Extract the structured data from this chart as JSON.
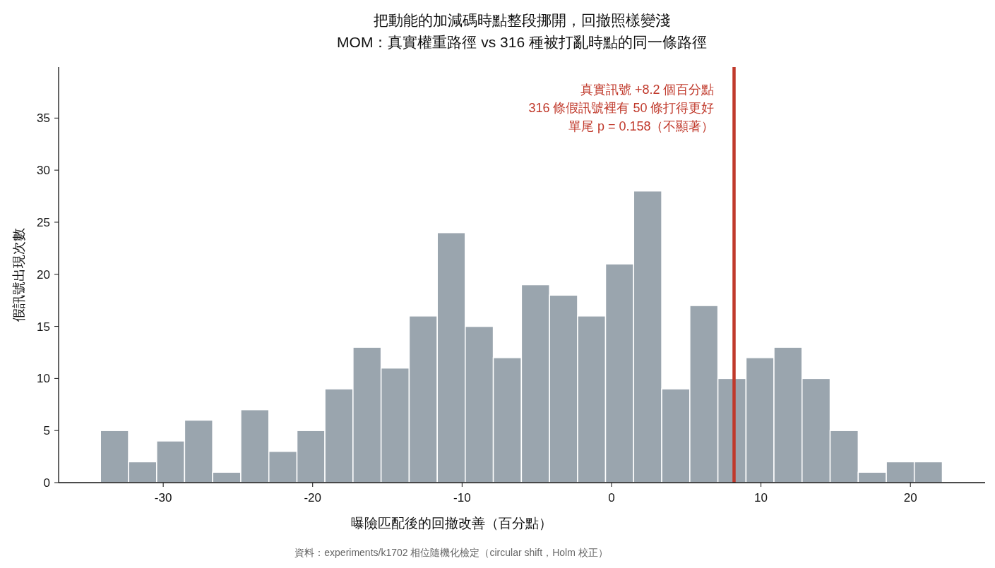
{
  "chart_data": {
    "type": "histogram",
    "title": "把動能的加減碼時點整段挪開，回撤照樣變淺",
    "subtitle": "MOM：真實權重路徑 vs 316 種被打亂時點的同一條路徑",
    "xlabel": "曝險匹配後的回撤改善（百分點）",
    "ylabel": "假訊號出現次數",
    "bins": [
      -34.2,
      -32.32,
      -30.44,
      -28.57,
      -26.69,
      -24.81,
      -22.93,
      -21.05,
      -19.18,
      -17.3,
      -15.42,
      -13.54,
      -11.66,
      -9.79,
      -7.91,
      -6.03,
      -4.15,
      -2.27,
      -0.4,
      1.48,
      3.36,
      5.24,
      7.12,
      9.0,
      10.87,
      12.75,
      14.63,
      16.51,
      18.39,
      20.26,
      22.14
    ],
    "values": [
      5,
      2,
      4,
      6,
      1,
      7,
      3,
      5,
      9,
      13,
      11,
      16,
      24,
      15,
      12,
      19,
      18,
      16,
      21,
      28,
      9,
      17,
      10,
      12,
      13,
      10,
      5,
      1,
      2,
      2
    ],
    "color": "#9aa5ae",
    "xlim": [
      -37,
      25
    ],
    "ylim": [
      0,
      39.9
    ],
    "xticks": [
      -30,
      -20,
      -10,
      0,
      10,
      20
    ],
    "yticks": [
      0,
      5,
      10,
      15,
      20,
      25,
      30,
      35
    ],
    "ref_lines": [
      {
        "axis": "x",
        "value": 8.2,
        "color": "#c0392b"
      }
    ],
    "annotations": [
      "真實訊號 +8.2 個百分點",
      "316 條假訊號裡有 50 條打得更好",
      "單尾 p = 0.158（不顯著）",
      "資料：experiments/k1702 相位隨機化檢定（circular shift，Holm 校正）"
    ],
    "grid": false
  }
}
